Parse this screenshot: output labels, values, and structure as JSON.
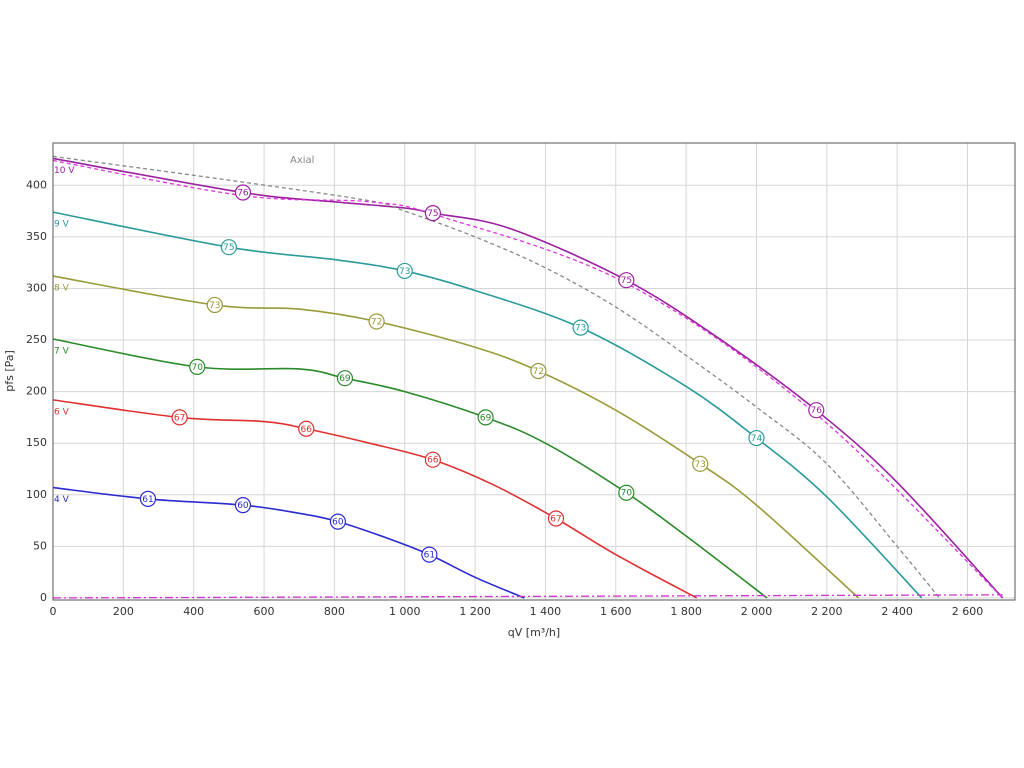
{
  "chart_data": {
    "type": "line",
    "annotation": "Axial",
    "x_label": "qV [m³/h]",
    "y_label": "pfs [Pa]",
    "xlim": [
      0,
      2735
    ],
    "ylim": [
      -2,
      441
    ],
    "grid": true,
    "xticks": [
      0,
      200,
      400,
      600,
      800,
      {
        "value": 1000,
        "label": "1 000"
      },
      {
        "value": 1200,
        "label": "1 200"
      },
      {
        "value": 1400,
        "label": "1 400"
      },
      {
        "value": 1600,
        "label": "1 600"
      },
      {
        "value": 1800,
        "label": "1 800"
      },
      {
        "value": 2000,
        "label": "2 000"
      },
      {
        "value": 2200,
        "label": "2 200"
      },
      {
        "value": 2400,
        "label": "2 400"
      },
      {
        "value": 2600,
        "label": "2 600"
      }
    ],
    "yticks": [
      0,
      50,
      100,
      150,
      200,
      250,
      300,
      350,
      400
    ],
    "series": [
      {
        "name": "10 V",
        "color": "#9b1fa0",
        "style": "solid",
        "x": [
          0,
          540,
          800,
          1000,
          1080,
          1300,
          1630,
          1900,
          2170,
          2400,
          2700
        ],
        "values": [
          426,
          393,
          384,
          378,
          373,
          358,
          308,
          250,
          182,
          112,
          0
        ],
        "markers": [
          {
            "x": 540,
            "y": 393,
            "label": 76
          },
          {
            "x": 1080,
            "y": 373,
            "label": 75
          },
          {
            "x": 1630,
            "y": 308,
            "label": 75
          },
          {
            "x": 2170,
            "y": 182,
            "label": 76
          }
        ]
      },
      {
        "name": "9 V",
        "color": "#2a9a9a",
        "style": "solid",
        "x": [
          0,
          500,
          800,
          1000,
          1200,
          1500,
          1800,
          2000,
          2200,
          2470
        ],
        "values": [
          374,
          340,
          328,
          317,
          298,
          262,
          205,
          155,
          98,
          0
        ],
        "markers": [
          {
            "x": 500,
            "y": 340,
            "label": 75
          },
          {
            "x": 1000,
            "y": 317,
            "label": 73
          },
          {
            "x": 1500,
            "y": 262,
            "label": 73
          },
          {
            "x": 2000,
            "y": 155,
            "label": 74
          }
        ]
      },
      {
        "name": "8 V",
        "color": "#9a9a3a",
        "style": "solid",
        "x": [
          0,
          460,
          700,
          920,
          1200,
          1380,
          1600,
          1840,
          2000,
          2290
        ],
        "values": [
          312,
          284,
          280,
          268,
          243,
          220,
          182,
          130,
          90,
          0
        ],
        "markers": [
          {
            "x": 460,
            "y": 284,
            "label": 73
          },
          {
            "x": 920,
            "y": 268,
            "label": 72
          },
          {
            "x": 1380,
            "y": 220,
            "label": 72
          },
          {
            "x": 1840,
            "y": 130,
            "label": 73
          }
        ]
      },
      {
        "name": "7 V",
        "color": "#2a8a2a",
        "style": "solid",
        "x": [
          0,
          410,
          700,
          830,
          1000,
          1230,
          1400,
          1630,
          1800,
          2030
        ],
        "values": [
          251,
          224,
          222,
          213,
          200,
          175,
          150,
          102,
          60,
          0
        ],
        "markers": [
          {
            "x": 410,
            "y": 224,
            "label": 70
          },
          {
            "x": 830,
            "y": 213,
            "label": 69
          },
          {
            "x": 1230,
            "y": 175,
            "label": 69
          },
          {
            "x": 1630,
            "y": 102,
            "label": 70
          }
        ]
      },
      {
        "name": "6 V",
        "color": "#e03030",
        "style": "solid",
        "x": [
          0,
          360,
          600,
          720,
          900,
          1080,
          1250,
          1430,
          1600,
          1830
        ],
        "values": [
          192,
          175,
          171,
          164,
          150,
          134,
          110,
          77,
          42,
          0
        ],
        "markers": [
          {
            "x": 360,
            "y": 175,
            "label": 67
          },
          {
            "x": 720,
            "y": 164,
            "label": 66
          },
          {
            "x": 1080,
            "y": 134,
            "label": 66
          },
          {
            "x": 1430,
            "y": 77,
            "label": 67
          }
        ]
      },
      {
        "name": "4 V",
        "color": "#2a2ad0",
        "style": "solid",
        "x": [
          0,
          270,
          540,
          700,
          810,
          950,
          1070,
          1200,
          1340
        ],
        "values": [
          107,
          96,
          90,
          82,
          74,
          58,
          42,
          20,
          0
        ],
        "markers": [
          {
            "x": 270,
            "y": 96,
            "label": 61
          },
          {
            "x": 540,
            "y": 90,
            "label": 60
          },
          {
            "x": 810,
            "y": 74,
            "label": 60
          },
          {
            "x": 1070,
            "y": 42,
            "label": 61
          }
        ]
      },
      {
        "color": "#888888",
        "style": "dashed",
        "x": [
          0,
          500,
          900,
          1000,
          1200,
          1400,
          1600,
          1800,
          2000,
          2200,
          2400,
          2520
        ],
        "values": [
          428,
          405,
          385,
          375,
          350,
          320,
          282,
          235,
          185,
          130,
          50,
          0
        ]
      },
      {
        "color": "#dd33dd",
        "style": "dashed",
        "x": [
          0,
          540,
          900,
          1100,
          1630,
          2170,
          2700
        ],
        "values": [
          424,
          390,
          384,
          370,
          305,
          178,
          0
        ]
      },
      {
        "color": "#cc33cc",
        "style": "dashdot",
        "x": [
          0,
          2700
        ],
        "values": [
          0,
          3
        ]
      }
    ]
  }
}
